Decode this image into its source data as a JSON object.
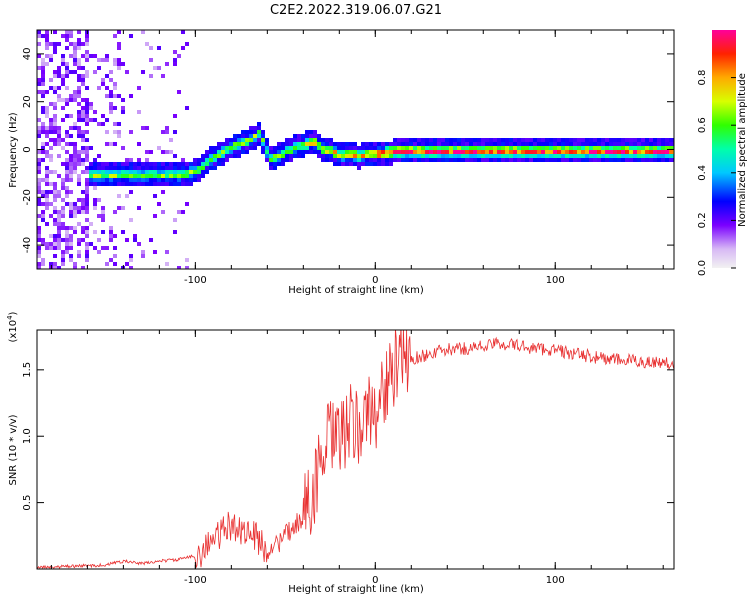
{
  "title": "C2E2.2022.319.06.07.G21",
  "colors": {
    "snr_line": "#e83030",
    "axis": "#000000",
    "background": "#ffffff"
  },
  "chart_data": [
    {
      "type": "heatmap",
      "name": "spectrogram",
      "xlabel": "Height of straight line (km)",
      "ylabel": "Frequency (Hz)",
      "xlim": [
        -188,
        166
      ],
      "ylim": [
        -50,
        50
      ],
      "xticks": [
        -100,
        0,
        100
      ],
      "xtick_labels": [
        "-100",
        "0",
        "100"
      ],
      "yticks": [
        -40,
        -20,
        0,
        20,
        40
      ],
      "ytick_labels": [
        "-40",
        "-20",
        "0",
        "20",
        "40"
      ],
      "colorbar": {
        "label": "Normalized spectral amplitude",
        "ticks": [
          0.0,
          0.2,
          0.4,
          0.6,
          0.8
        ],
        "tick_labels": [
          "0.0",
          "0.2",
          "0.4",
          "0.6",
          "0.8"
        ],
        "range": [
          0,
          1
        ],
        "colormap": "rainbow"
      },
      "signal_track": {
        "height_km": [
          -160,
          -150,
          -140,
          -130,
          -120,
          -110,
          -100,
          -90,
          -80,
          -70,
          -65,
          -60,
          -55,
          -50,
          -45,
          -40,
          -35,
          -30,
          -25,
          -20,
          -15,
          -10,
          -5,
          0,
          10,
          20,
          50,
          100,
          166
        ],
        "frequency_hz": [
          -10,
          -10,
          -10,
          -10,
          -10,
          -10,
          -8,
          -2,
          2,
          5,
          8,
          -3,
          -2,
          0,
          2,
          3,
          4,
          1,
          0,
          -2,
          -1,
          -2,
          -1,
          -1,
          0,
          0,
          0,
          0,
          0
        ]
      },
      "noise_region_km": [
        -188,
        -105
      ]
    },
    {
      "type": "line",
      "name": "snr",
      "xlabel": "Height of straight line (km)",
      "ylabel": "SNR (10 * v/v)",
      "multiplier_label": "(x10",
      "multiplier_exp": "4",
      "multiplier_close": ")",
      "xlim": [
        -188,
        166
      ],
      "ylim": [
        0,
        1.8
      ],
      "xticks": [
        -100,
        0,
        100
      ],
      "xtick_labels": [
        "-100",
        "0",
        "100"
      ],
      "yticks": [
        0.5,
        1.0,
        1.5
      ],
      "ytick_labels": [
        "0.5",
        "1.0",
        "1.5"
      ],
      "series": [
        {
          "name": "SNR",
          "x": [
            -188,
            -170,
            -150,
            -140,
            -130,
            -120,
            -110,
            -100,
            -95,
            -90,
            -85,
            -80,
            -75,
            -70,
            -65,
            -60,
            -55,
            -50,
            -45,
            -40,
            -35,
            -30,
            -25,
            -20,
            -15,
            -10,
            -5,
            0,
            5,
            10,
            15,
            20,
            30,
            40,
            50,
            60,
            70,
            80,
            90,
            100,
            110,
            120,
            130,
            140,
            150,
            166
          ],
          "y": [
            0.01,
            0.02,
            0.03,
            0.06,
            0.04,
            0.06,
            0.07,
            0.1,
            0.15,
            0.22,
            0.28,
            0.33,
            0.3,
            0.28,
            0.22,
            0.14,
            0.18,
            0.25,
            0.32,
            0.4,
            0.58,
            0.8,
            1.0,
            0.95,
            1.1,
            1.05,
            1.15,
            1.2,
            1.35,
            1.5,
            1.55,
            1.58,
            1.62,
            1.65,
            1.66,
            1.68,
            1.7,
            1.68,
            1.66,
            1.65,
            1.62,
            1.6,
            1.58,
            1.57,
            1.56,
            1.55
          ]
        }
      ]
    }
  ]
}
